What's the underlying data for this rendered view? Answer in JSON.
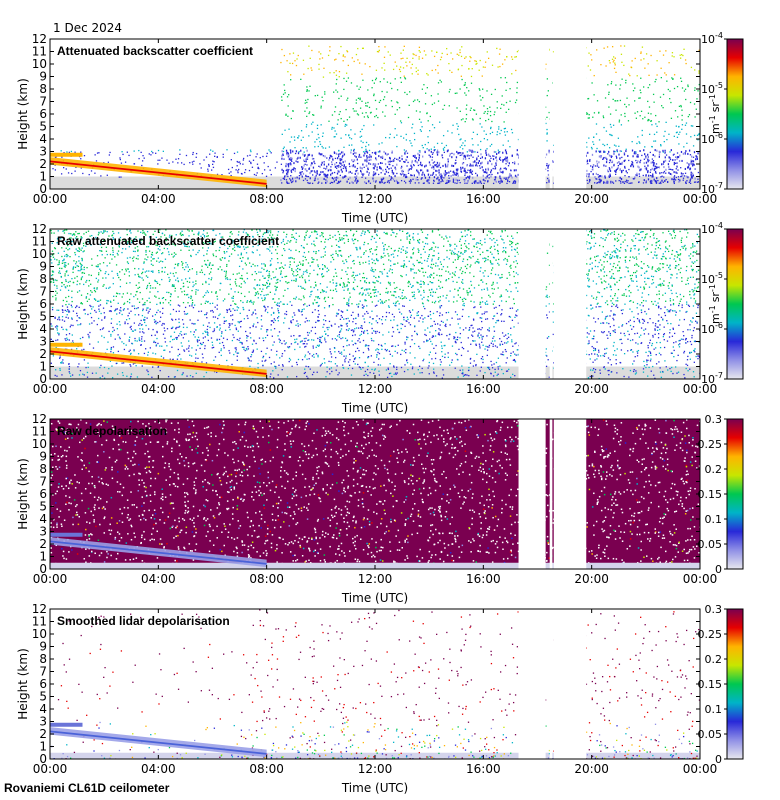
{
  "figure": {
    "date": "1 Dec 2024",
    "footer": "Rovaniemi CL61D ceilometer"
  },
  "colors": {
    "background": "#dcdcdc",
    "scale": [
      "#e8e8ee",
      "#9090e6",
      "#2828d8",
      "#00b4c8",
      "#00c850",
      "#c8e600",
      "#ffb400",
      "#e60000",
      "#7a0050"
    ]
  },
  "chart_data": [
    {
      "type": "heatmap",
      "title": "Attenuated backscatter coefficient",
      "xlabel": "Time (UTC)",
      "ylabel": "Height (km)",
      "xlim": [
        0,
        24
      ],
      "ylim": [
        0,
        12
      ],
      "x_ticks": [
        "00:00",
        "04:00",
        "08:00",
        "12:00",
        "16:00",
        "20:00",
        "00:00"
      ],
      "y_ticks": [
        "0",
        "1",
        "2",
        "3",
        "4",
        "5",
        "6",
        "7",
        "8",
        "9",
        "10",
        "11",
        "12"
      ],
      "colorbar": {
        "scale": "log",
        "ticks": [
          {
            "base": "10",
            "exp": "-4"
          },
          {
            "base": "10",
            "exp": "-5"
          },
          {
            "base": "10",
            "exp": "-6"
          },
          {
            "base": "10",
            "exp": "-7"
          }
        ],
        "unit": {
          "m": "m",
          "m_exp": "-1",
          "sr": "sr",
          "sr_exp": "-1"
        }
      },
      "data_gaps_utc": [
        [
          17.3,
          18.3
        ],
        [
          18.45,
          18.55
        ],
        [
          18.6,
          19.8
        ]
      ],
      "features": {
        "cloud_layer_km": {
          "start_utc": 0,
          "end_utc": 8,
          "height_start_km": 2.2,
          "height_end_km": 0.4
        },
        "noise_top_km": 2.2,
        "panel_kind": "attenuated"
      }
    },
    {
      "type": "heatmap",
      "title": "Raw attenuated backscatter coefficient",
      "xlabel": "Time (UTC)",
      "ylabel": "Height (km)",
      "xlim": [
        0,
        24
      ],
      "ylim": [
        0,
        12
      ],
      "x_ticks": [
        "00:00",
        "04:00",
        "08:00",
        "12:00",
        "16:00",
        "20:00",
        "00:00"
      ],
      "y_ticks": [
        "0",
        "1",
        "2",
        "3",
        "4",
        "5",
        "6",
        "7",
        "8",
        "9",
        "10",
        "11",
        "12"
      ],
      "colorbar": {
        "scale": "log",
        "ticks": [
          {
            "base": "10",
            "exp": "-4"
          },
          {
            "base": "10",
            "exp": "-5"
          },
          {
            "base": "10",
            "exp": "-6"
          },
          {
            "base": "10",
            "exp": "-7"
          }
        ],
        "unit": {
          "m": "m",
          "m_exp": "-1",
          "sr": "sr",
          "sr_exp": "-1"
        }
      },
      "data_gaps_utc": [
        [
          17.3,
          18.3
        ],
        [
          18.45,
          18.55
        ],
        [
          18.6,
          19.8
        ]
      ],
      "features": {
        "cloud_layer_km": {
          "start_utc": 0,
          "end_utc": 8,
          "height_start_km": 2.2,
          "height_end_km": 0.4
        },
        "panel_kind": "raw"
      }
    },
    {
      "type": "heatmap",
      "title": "Raw depolarisation",
      "xlabel": "Time (UTC)",
      "ylabel": "Height (km)",
      "xlim": [
        0,
        24
      ],
      "ylim": [
        0,
        12
      ],
      "x_ticks": [
        "00:00",
        "04:00",
        "08:00",
        "12:00",
        "16:00",
        "20:00",
        "00:00"
      ],
      "y_ticks": [
        "0",
        "1",
        "2",
        "3",
        "4",
        "5",
        "6",
        "7",
        "8",
        "9",
        "10",
        "11",
        "12"
      ],
      "colorbar": {
        "scale": "linear",
        "range": [
          0,
          0.3
        ],
        "labels": [
          "0.3",
          "0.25",
          "0.2",
          "0.15",
          "0.1",
          "0.05",
          "0"
        ]
      },
      "data_gaps_utc": [
        [
          17.3,
          18.3
        ],
        [
          18.45,
          18.55
        ],
        [
          18.6,
          19.8
        ]
      ],
      "features": {
        "cloud_layer_km": {
          "start_utc": 0,
          "end_utc": 8,
          "height_start_km": 2.2,
          "height_end_km": 0.4
        },
        "panel_kind": "depol_raw"
      }
    },
    {
      "type": "heatmap",
      "title": "Smoothed lidar depolarisation",
      "xlabel": "Time (UTC)",
      "ylabel": "Height (km)",
      "xlim": [
        0,
        24
      ],
      "ylim": [
        0,
        12
      ],
      "x_ticks": [
        "00:00",
        "04:00",
        "08:00",
        "12:00",
        "16:00",
        "20:00",
        "00:00"
      ],
      "y_ticks": [
        "0",
        "1",
        "2",
        "3",
        "4",
        "5",
        "6",
        "7",
        "8",
        "9",
        "10",
        "11",
        "12"
      ],
      "colorbar": {
        "scale": "linear",
        "range": [
          0,
          0.3
        ],
        "labels": [
          "0.3",
          "0.25",
          "0.2",
          "0.15",
          "0.1",
          "0.05",
          "0"
        ]
      },
      "data_gaps_utc": [
        [
          17.3,
          18.3
        ],
        [
          18.45,
          18.55
        ],
        [
          18.6,
          19.8
        ]
      ],
      "features": {
        "cloud_layer_km": {
          "start_utc": 0,
          "end_utc": 8,
          "height_start_km": 2.2,
          "height_end_km": 0.4
        },
        "panel_kind": "depol_smooth"
      }
    }
  ]
}
